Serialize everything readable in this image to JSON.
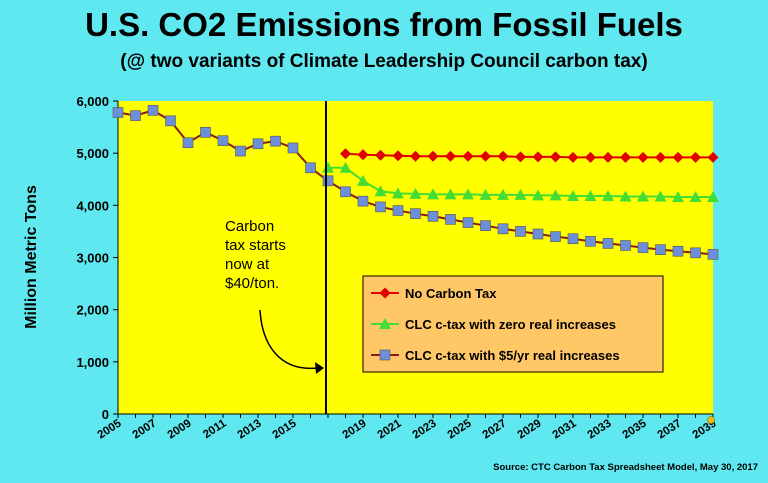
{
  "chart_data": {
    "type": "line",
    "title": "U.S. CO2 Emissions from Fossil Fuels",
    "subtitle": "(@ two variants of Climate Leadership Council carbon tax)",
    "ylabel": "Million Metric Tons",
    "xlabel": "",
    "ylim": [
      0,
      6000
    ],
    "xlim": [
      2005,
      2039
    ],
    "y_ticks": [
      "0",
      "1,000",
      "2,000",
      "3,000",
      "4,000",
      "5,000",
      "6,000"
    ],
    "x_ticks": [
      "2005",
      "2007",
      "2009",
      "2011",
      "2013",
      "2015",
      "2019",
      "2021",
      "2023",
      "2025",
      "2027",
      "2029",
      "2031",
      "2033",
      "2035",
      "2037",
      "2039"
    ],
    "grid": false,
    "legend_position": "center-right",
    "colors": {
      "background": "#5fe8ef",
      "plot_area": "#ffff00",
      "legend_box": "#ffc766",
      "no_tax": "#e00000",
      "zero_increase": "#44dd33",
      "five_increase": "#6d8fd8",
      "five_line": "#8b1a1a"
    },
    "series": [
      {
        "name": "No Carbon Tax",
        "x": [
          2018,
          2019,
          2020,
          2021,
          2022,
          2023,
          2024,
          2025,
          2026,
          2027,
          2028,
          2029,
          2030,
          2031,
          2032,
          2033,
          2034,
          2035,
          2036,
          2037,
          2038,
          2039
        ],
        "values": [
          4990,
          4970,
          4960,
          4950,
          4940,
          4940,
          4940,
          4940,
          4940,
          4940,
          4930,
          4930,
          4930,
          4920,
          4920,
          4920,
          4920,
          4920,
          4920,
          4920,
          4920,
          4920
        ]
      },
      {
        "name": "CLC c-tax with zero real increases",
        "x": [
          2017,
          2018,
          2019,
          2020,
          2021,
          2022,
          2023,
          2024,
          2025,
          2026,
          2027,
          2028,
          2029,
          2030,
          2031,
          2032,
          2033,
          2034,
          2035,
          2036,
          2037,
          2038,
          2039
        ],
        "values": [
          4720,
          4720,
          4470,
          4270,
          4230,
          4220,
          4210,
          4210,
          4210,
          4200,
          4200,
          4200,
          4190,
          4190,
          4180,
          4180,
          4180,
          4170,
          4170,
          4170,
          4160,
          4160,
          4160
        ]
      },
      {
        "name": "CLC c-tax with $5/yr real increases",
        "x": [
          2005,
          2006,
          2007,
          2008,
          2009,
          2010,
          2011,
          2012,
          2013,
          2014,
          2015,
          2016,
          2017,
          2018,
          2019,
          2020,
          2021,
          2022,
          2023,
          2024,
          2025,
          2026,
          2027,
          2028,
          2029,
          2030,
          2031,
          2032,
          2033,
          2034,
          2035,
          2036,
          2037,
          2038,
          2039
        ],
        "values": [
          5780,
          5720,
          5820,
          5620,
          5200,
          5400,
          5240,
          5040,
          5180,
          5230,
          5100,
          4720,
          4470,
          4260,
          4080,
          3970,
          3900,
          3840,
          3790,
          3730,
          3670,
          3610,
          3550,
          3500,
          3450,
          3400,
          3360,
          3310,
          3270,
          3230,
          3190,
          3150,
          3120,
          3090,
          3060
        ]
      }
    ],
    "annotation": {
      "lines": [
        "Carbon",
        "tax starts",
        "now at",
        "$40/ton."
      ],
      "marker_x": 2017
    }
  },
  "source": "Source:  CTC Carbon Tax Spreadsheet Model, May 30, 2017"
}
